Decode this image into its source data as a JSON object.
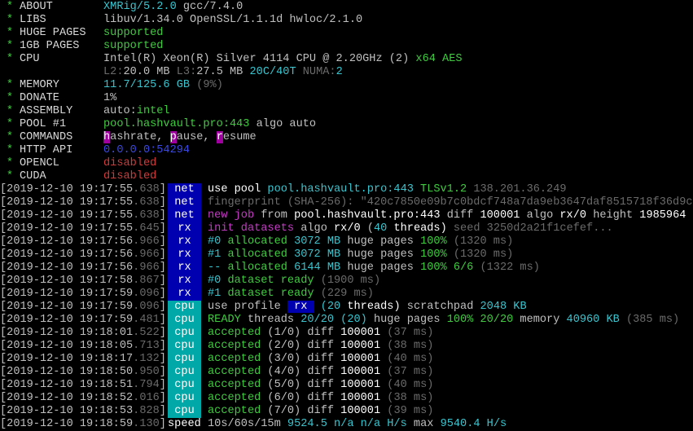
{
  "colors": {
    "background": "#000000",
    "net_tag": "#0000b0",
    "rx_tag": "#0000b0",
    "cpu_tag": "#00a8a8",
    "green": "#3fcc3f",
    "cyan": "#39c5cf",
    "red": "#d23a3a",
    "magenta": "#c33cc3",
    "gray": "#6b6b6b"
  },
  "header": [
    {
      "star": "*",
      "label": "ABOUT",
      "value": [
        [
          "XMRig/5.2.0",
          "c"
        ],
        [
          " gcc/7.4.0",
          "w"
        ]
      ]
    },
    {
      "star": "*",
      "label": "LIBS",
      "value": [
        [
          "libuv/1.34.0 OpenSSL/1.1.1d hwloc/2.1.0",
          "w"
        ]
      ]
    },
    {
      "star": "*",
      "label": "HUGE PAGES",
      "value": [
        [
          "supported",
          "g"
        ]
      ]
    },
    {
      "star": "*",
      "label": "1GB PAGES",
      "value": [
        [
          "supported",
          "g"
        ]
      ]
    },
    {
      "star": "*",
      "label": "CPU",
      "value": [
        [
          "Intel(R) Xeon(R) Silver 4114 CPU @ 2.20GHz (2) ",
          "w"
        ],
        [
          "x64 AES",
          "g"
        ]
      ]
    },
    {
      "star": "",
      "label": "",
      "value": [
        [
          "L2:",
          "gr"
        ],
        [
          "20.0 MB ",
          "w"
        ],
        [
          "L3:",
          "gr"
        ],
        [
          "27.5 MB ",
          "w"
        ],
        [
          "20C/40T ",
          "c"
        ],
        [
          "NUMA:",
          "gr"
        ],
        [
          "2",
          "c"
        ]
      ]
    },
    {
      "star": "*",
      "label": "MEMORY",
      "value": [
        [
          "11.7/125.6 GB ",
          "c"
        ],
        [
          "(9%)",
          "gr"
        ]
      ]
    },
    {
      "star": "*",
      "label": "DONATE",
      "value": [
        [
          "1%",
          "w"
        ]
      ]
    },
    {
      "star": "*",
      "label": "ASSEMBLY",
      "value": [
        [
          "auto:",
          "w"
        ],
        [
          "intel",
          "g"
        ]
      ]
    },
    {
      "star": "*",
      "label": "POOL #1",
      "value": [
        [
          "pool.hashvault.pro:443 ",
          "g"
        ],
        [
          "algo auto",
          "w"
        ]
      ]
    },
    {
      "star": "*",
      "label": "COMMANDS",
      "value": [
        [
          "h",
          "mk"
        ],
        [
          "ashrate, ",
          "w"
        ],
        [
          "p",
          "mk"
        ],
        [
          "ause, ",
          "w"
        ],
        [
          "r",
          "mk"
        ],
        [
          "esume",
          "w"
        ]
      ]
    },
    {
      "star": "*",
      "label": "HTTP API",
      "value": [
        [
          "0.0.0.0:54294",
          "b"
        ]
      ]
    },
    {
      "star": "*",
      "label": "OPENCL",
      "value": [
        [
          "disabled",
          "r"
        ]
      ]
    },
    {
      "star": "*",
      "label": "CUDA",
      "value": [
        [
          "disabled",
          "r"
        ]
      ]
    }
  ],
  "log": [
    {
      "date": "[2019-12-10 19:17:55",
      "ms": ".638",
      "close": "]",
      "tag": "net",
      "tag_color": "#0000b0",
      "msg": [
        [
          "use pool ",
          "W"
        ],
        [
          "pool.hashvault.pro:443 ",
          "c"
        ],
        [
          "TLSv1.2 ",
          "g"
        ],
        [
          "138.201.36.249",
          "gr"
        ]
      ]
    },
    {
      "date": "[2019-12-10 19:17:55",
      "ms": ".638",
      "close": "]",
      "tag": "net",
      "tag_color": "#0000b0",
      "msg": [
        [
          "fingerprint (SHA-256): \"420c7850e09b7c0bdcf748a7da9eb3647daf8515718f36d9c",
          "gr"
        ]
      ]
    },
    {
      "date": "[2019-12-10 19:17:55",
      "ms": ".638",
      "close": "]",
      "tag": "net",
      "tag_color": "#0000b0",
      "msg": [
        [
          "new job",
          "m"
        ],
        [
          " from ",
          "w"
        ],
        [
          "pool.hashvault.pro:443 ",
          "W"
        ],
        [
          "diff ",
          "w"
        ],
        [
          "100001 ",
          "W"
        ],
        [
          "algo ",
          "w"
        ],
        [
          "rx/0 ",
          "W"
        ],
        [
          "height ",
          "w"
        ],
        [
          "1985964",
          "W"
        ]
      ]
    },
    {
      "date": "[2019-12-10 19:17:55",
      "ms": ".645",
      "close": "]",
      "tag": "rx",
      "tag_color": "#0000b0",
      "msg": [
        [
          "init datasets ",
          "m"
        ],
        [
          "algo ",
          "w"
        ],
        [
          "rx/0 ",
          "W"
        ],
        [
          "(",
          "w"
        ],
        [
          "40",
          "c"
        ],
        [
          " threads) ",
          "W"
        ],
        [
          "seed 3250d2a21f1cefef...",
          "gr"
        ]
      ]
    },
    {
      "date": "[2019-12-10 19:17:56",
      "ms": ".966",
      "close": "]",
      "tag": "rx",
      "tag_color": "#0000b0",
      "msg": [
        [
          "#0 ",
          "c"
        ],
        [
          "allocated ",
          "g"
        ],
        [
          "3072 MB ",
          "c"
        ],
        [
          "huge pages ",
          "w"
        ],
        [
          "100% ",
          "g"
        ],
        [
          "(1320 ms)",
          "gr"
        ]
      ]
    },
    {
      "date": "[2019-12-10 19:17:56",
      "ms": ".966",
      "close": "]",
      "tag": "rx",
      "tag_color": "#0000b0",
      "msg": [
        [
          "#1 ",
          "c"
        ],
        [
          "allocated ",
          "g"
        ],
        [
          "3072 MB ",
          "c"
        ],
        [
          "huge pages ",
          "w"
        ],
        [
          "100% ",
          "g"
        ],
        [
          "(1320 ms)",
          "gr"
        ]
      ]
    },
    {
      "date": "[2019-12-10 19:17:56",
      "ms": ".966",
      "close": "]",
      "tag": "rx",
      "tag_color": "#0000b0",
      "msg": [
        [
          "-- ",
          "c"
        ],
        [
          "allocated ",
          "g"
        ],
        [
          "6144 MB ",
          "c"
        ],
        [
          "huge pages ",
          "w"
        ],
        [
          "100% 6/6 ",
          "g"
        ],
        [
          "(1322 ms)",
          "gr"
        ]
      ]
    },
    {
      "date": "[2019-12-10 19:17:58",
      "ms": ".867",
      "close": "]",
      "tag": "rx",
      "tag_color": "#0000b0",
      "msg": [
        [
          "#0 ",
          "c"
        ],
        [
          "dataset ready ",
          "g"
        ],
        [
          "(1900 ms)",
          "gr"
        ]
      ]
    },
    {
      "date": "[2019-12-10 19:17:59",
      "ms": ".096",
      "close": "]",
      "tag": "rx",
      "tag_color": "#0000b0",
      "msg": [
        [
          "#1 ",
          "c"
        ],
        [
          "dataset ready ",
          "g"
        ],
        [
          "(229 ms)",
          "gr"
        ]
      ]
    },
    {
      "date": "[2019-12-10 19:17:59",
      "ms": ".096",
      "close": "]",
      "tag": "cpu",
      "tag_color": "#00a8a8",
      "msg": [
        [
          "use profile ",
          "w"
        ],
        [
          " rx ",
          "box"
        ],
        [
          " ",
          "w"
        ],
        [
          "(20 ",
          "c"
        ],
        [
          "threads) ",
          "W"
        ],
        [
          "scratchpad ",
          "w"
        ],
        [
          "2048 KB",
          "c"
        ]
      ]
    },
    {
      "date": "[2019-12-10 19:17:59",
      "ms": ".481",
      "close": "]",
      "tag": "cpu",
      "tag_color": "#00a8a8",
      "msg": [
        [
          "READY ",
          "g"
        ],
        [
          "threads ",
          "w"
        ],
        [
          "20/20 (20) ",
          "c"
        ],
        [
          "huge pages ",
          "w"
        ],
        [
          "100% 20/20 ",
          "g"
        ],
        [
          "memory ",
          "w"
        ],
        [
          "40960 KB ",
          "c"
        ],
        [
          "(385 ms)",
          "gr"
        ]
      ]
    },
    {
      "date": "[2019-12-10 19:18:01",
      "ms": ".522",
      "close": "]",
      "tag": "cpu",
      "tag_color": "#00a8a8",
      "msg": [
        [
          "accepted ",
          "g"
        ],
        [
          "(1/0) ",
          "w"
        ],
        [
          "diff ",
          "w"
        ],
        [
          "100001 ",
          "W"
        ],
        [
          "(37 ms)",
          "gr"
        ]
      ]
    },
    {
      "date": "[2019-12-10 19:18:05",
      "ms": ".713",
      "close": "]",
      "tag": "cpu",
      "tag_color": "#00a8a8",
      "msg": [
        [
          "accepted ",
          "g"
        ],
        [
          "(2/0) ",
          "w"
        ],
        [
          "diff ",
          "w"
        ],
        [
          "100001 ",
          "W"
        ],
        [
          "(38 ms)",
          "gr"
        ]
      ]
    },
    {
      "date": "[2019-12-10 19:18:17",
      "ms": ".132",
      "close": "]",
      "tag": "cpu",
      "tag_color": "#00a8a8",
      "msg": [
        [
          "accepted ",
          "g"
        ],
        [
          "(3/0) ",
          "w"
        ],
        [
          "diff ",
          "w"
        ],
        [
          "100001 ",
          "W"
        ],
        [
          "(40 ms)",
          "gr"
        ]
      ]
    },
    {
      "date": "[2019-12-10 19:18:50",
      "ms": ".950",
      "close": "]",
      "tag": "cpu",
      "tag_color": "#00a8a8",
      "msg": [
        [
          "accepted ",
          "g"
        ],
        [
          "(4/0) ",
          "w"
        ],
        [
          "diff ",
          "w"
        ],
        [
          "100001 ",
          "W"
        ],
        [
          "(37 ms)",
          "gr"
        ]
      ]
    },
    {
      "date": "[2019-12-10 19:18:51",
      "ms": ".794",
      "close": "]",
      "tag": "cpu",
      "tag_color": "#00a8a8",
      "msg": [
        [
          "accepted ",
          "g"
        ],
        [
          "(5/0) ",
          "w"
        ],
        [
          "diff ",
          "w"
        ],
        [
          "100001 ",
          "W"
        ],
        [
          "(40 ms)",
          "gr"
        ]
      ]
    },
    {
      "date": "[2019-12-10 19:18:52",
      "ms": ".016",
      "close": "]",
      "tag": "cpu",
      "tag_color": "#00a8a8",
      "msg": [
        [
          "accepted ",
          "g"
        ],
        [
          "(6/0) ",
          "w"
        ],
        [
          "diff ",
          "w"
        ],
        [
          "100001 ",
          "W"
        ],
        [
          "(38 ms)",
          "gr"
        ]
      ]
    },
    {
      "date": "[2019-12-10 19:18:53",
      "ms": ".828",
      "close": "]",
      "tag": "cpu",
      "tag_color": "#00a8a8",
      "msg": [
        [
          "accepted ",
          "g"
        ],
        [
          "(7/0) ",
          "w"
        ],
        [
          "diff ",
          "w"
        ],
        [
          "100001 ",
          "W"
        ],
        [
          "(39 ms)",
          "gr"
        ]
      ]
    },
    {
      "date": "[2019-12-10 19:18:59",
      "ms": ".130",
      "close": "]",
      "tag": "speed",
      "tag_color": "",
      "msg": [
        [
          "10s/60s/15m ",
          "w"
        ],
        [
          "9524.5 ",
          "c"
        ],
        [
          "n/a n/a H/s ",
          "c"
        ],
        [
          "max ",
          "w"
        ],
        [
          "9540.4 H/s",
          "c"
        ]
      ]
    }
  ]
}
